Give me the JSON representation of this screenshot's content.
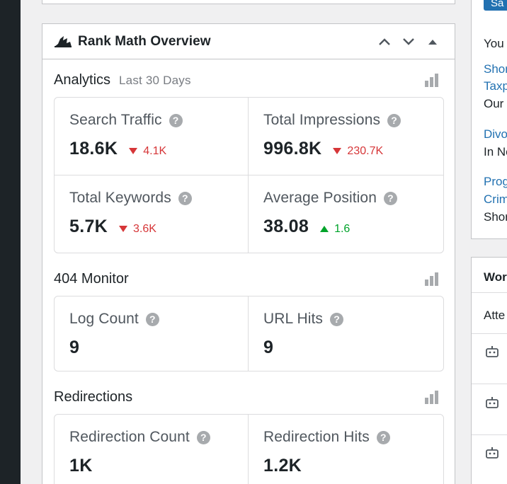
{
  "overview": {
    "title": "Rank Math Overview",
    "analytics": {
      "title": "Analytics",
      "period": "Last 30 Days",
      "stats": [
        {
          "label": "Search Traffic",
          "value": "18.6K",
          "delta": "4.1K",
          "trend": "down"
        },
        {
          "label": "Total Impressions",
          "value": "996.8K",
          "delta": "230.7K",
          "trend": "down"
        },
        {
          "label": "Total Keywords",
          "value": "5.7K",
          "delta": "3.6K",
          "trend": "down"
        },
        {
          "label": "Average Position",
          "value": "38.08",
          "delta": "1.6",
          "trend": "up"
        }
      ]
    },
    "monitor404": {
      "title": "404 Monitor",
      "stats": [
        {
          "label": "Log Count",
          "value": "9"
        },
        {
          "label": "URL Hits",
          "value": "9"
        }
      ]
    },
    "redirections": {
      "title": "Redirections",
      "stats": [
        {
          "label": "Redirection Count",
          "value": "1K"
        },
        {
          "label": "Redirection Hits",
          "value": "1.2K"
        }
      ]
    },
    "help_glyph": "?"
  },
  "right_panel": {
    "button": "Sa",
    "intro": "You",
    "links": [
      {
        "line1": "Shor",
        "line2": "Taxp",
        "desc": "Our"
      },
      {
        "line1": "Divo",
        "desc": "In Ne"
      },
      {
        "line1": "Prog",
        "line2": "Crim",
        "desc": "Shor"
      }
    ],
    "box2_title": "Wor",
    "box2_sub": "Atte"
  },
  "colors": {
    "down": "#d63638",
    "up": "#00a32a",
    "link": "#2271b1"
  }
}
